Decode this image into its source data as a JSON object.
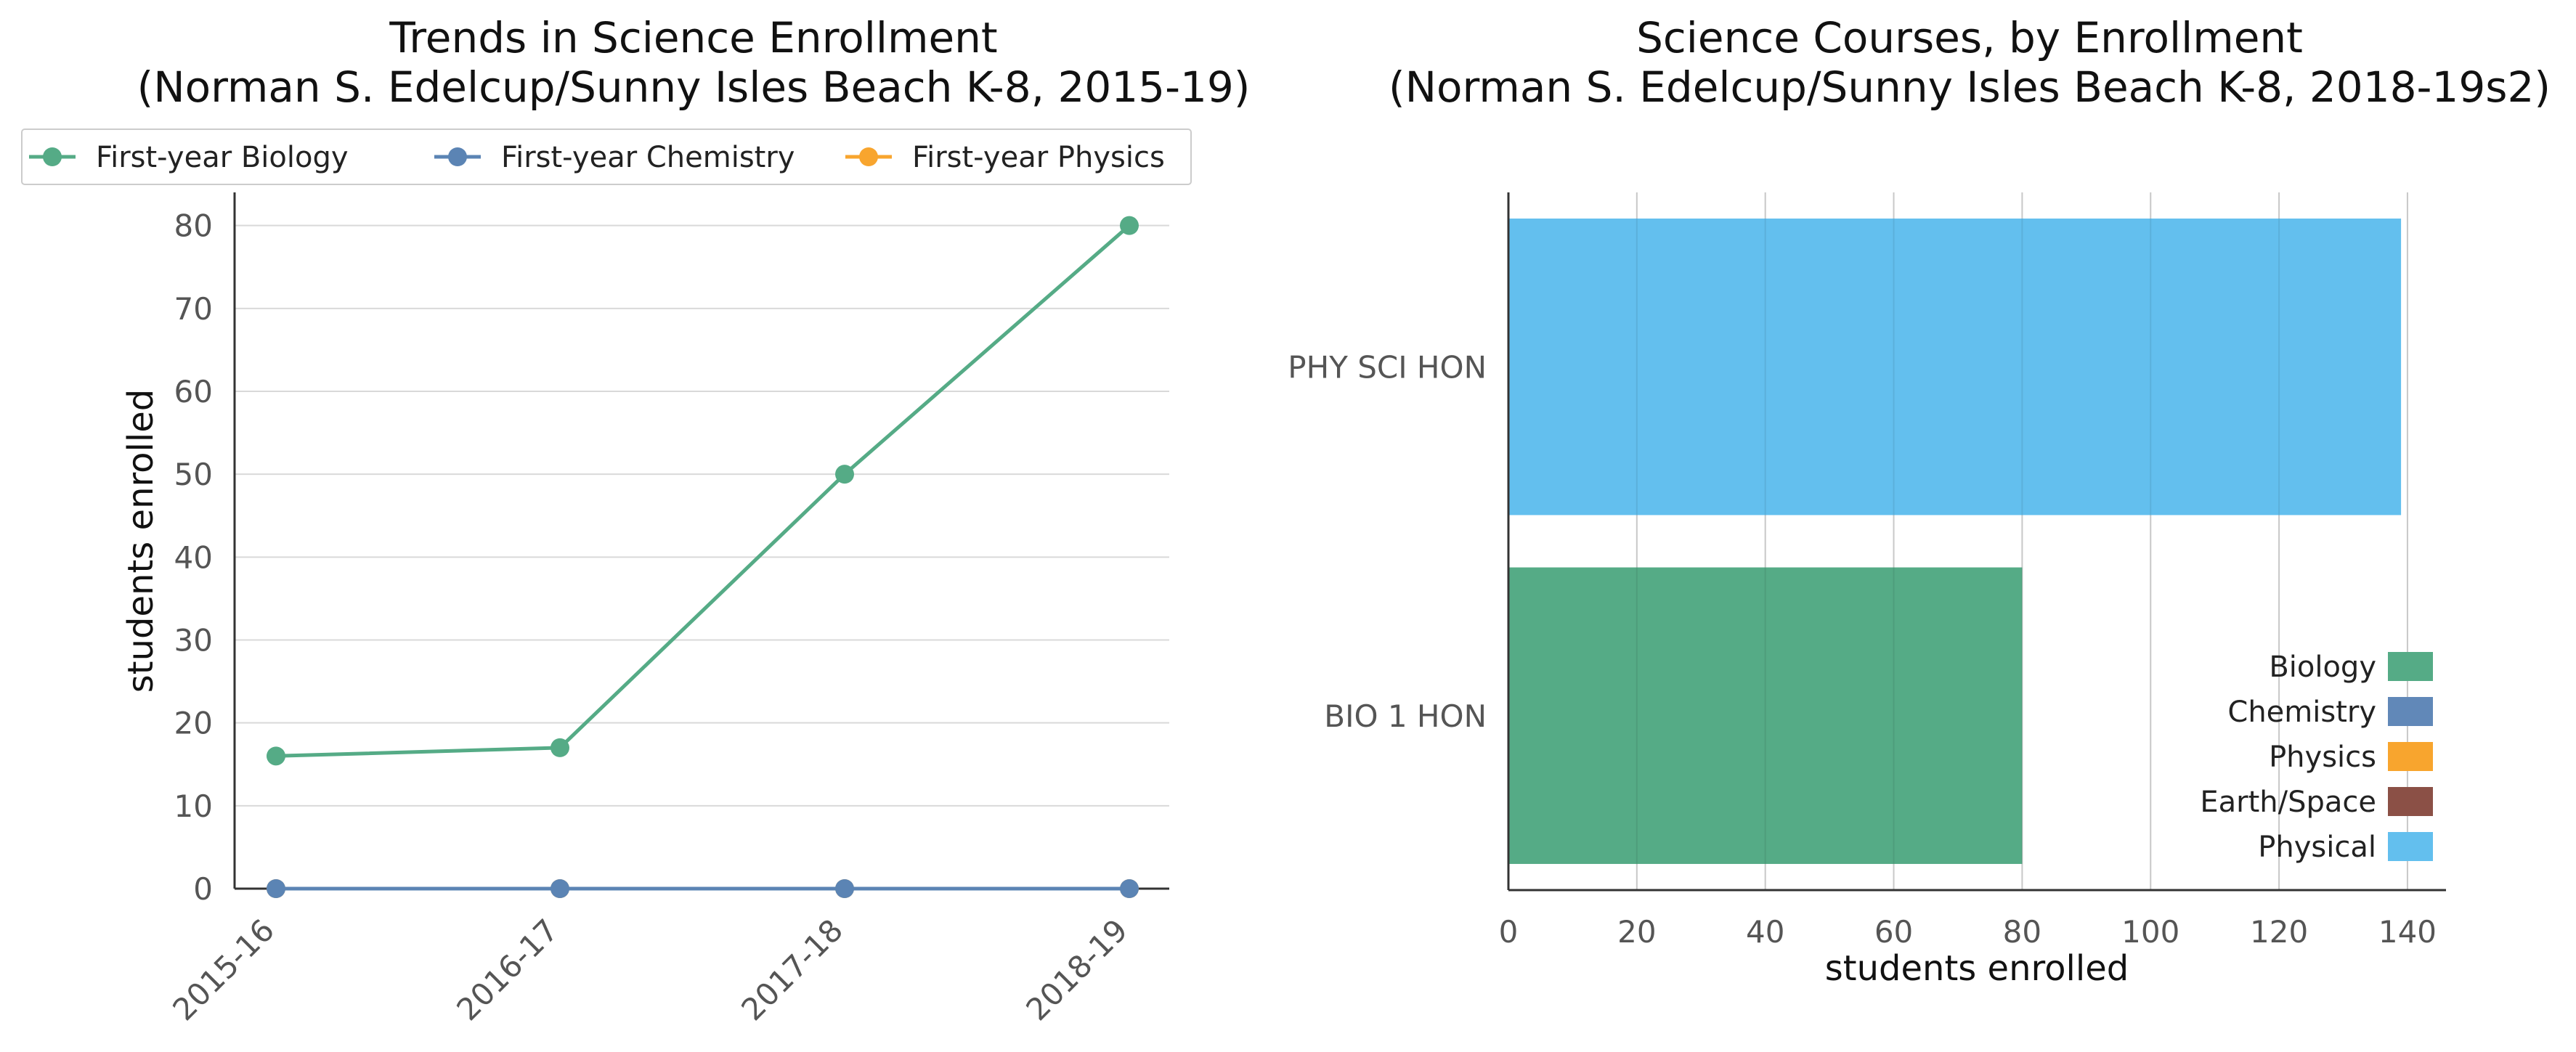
{
  "chart_data": [
    {
      "type": "line",
      "title": "Trends in Science Enrollment",
      "subtitle": "(Norman S. Edelcup/Sunny Isles Beach K-8, 2015-19)",
      "xlabel": "",
      "ylabel": "students enrolled",
      "categories": [
        "2015-16",
        "2016-17",
        "2017-18",
        "2018-19"
      ],
      "ylim": [
        0,
        84
      ],
      "yticks": [
        0,
        10,
        20,
        30,
        40,
        50,
        60,
        70,
        80
      ],
      "grid": true,
      "legend_position": "top",
      "series": [
        {
          "name": "First-year Biology",
          "color": "#55ab86",
          "values": [
            16,
            17,
            50,
            80
          ]
        },
        {
          "name": "First-year Chemistry",
          "color": "#5b84b4",
          "values": [
            0,
            0,
            0,
            0
          ]
        },
        {
          "name": "First-year Physics",
          "color": "#f8a52e",
          "values": [
            0,
            0,
            0,
            0
          ]
        }
      ]
    },
    {
      "type": "bar",
      "orientation": "horizontal",
      "title": "Science Courses, by Enrollment",
      "subtitle": "(Norman S. Edelcup/Sunny Isles Beach K-8, 2018-19s2)",
      "xlabel": "students enrolled",
      "ylabel": "",
      "xlim": [
        0,
        146
      ],
      "xticks": [
        0,
        20,
        40,
        60,
        80,
        100,
        120,
        140
      ],
      "grid": true,
      "categories": [
        "PHY SCI HON",
        "BIO 1 HON"
      ],
      "values": [
        139,
        80
      ],
      "bar_colors": [
        "#63bfee",
        "#55ab86"
      ],
      "legend_position": "lower-right",
      "legend": [
        {
          "name": "Biology",
          "color": "#55ab86"
        },
        {
          "name": "Chemistry",
          "color": "#6188b8"
        },
        {
          "name": "Physics",
          "color": "#f8a52e"
        },
        {
          "name": "Earth/Space",
          "color": "#8b5046"
        },
        {
          "name": "Physical",
          "color": "#63bfee"
        }
      ]
    }
  ]
}
